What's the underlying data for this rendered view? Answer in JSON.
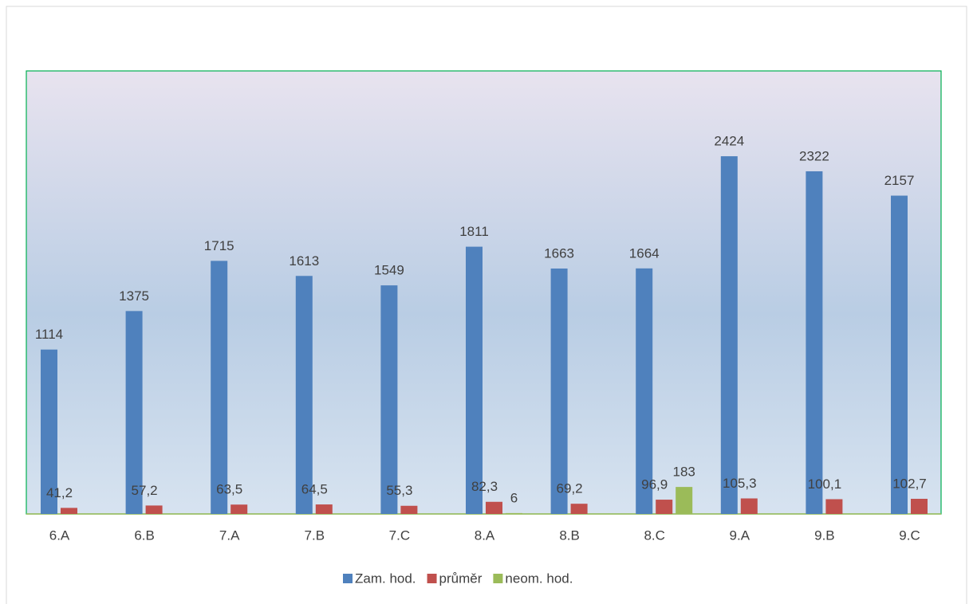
{
  "chart_data": {
    "type": "bar",
    "categories": [
      "6.A",
      "6.B",
      "7.A",
      "7.B",
      "7.C",
      "8.A",
      "8.B",
      "8.C",
      "9.A",
      "9.B",
      "9.C"
    ],
    "series": [
      {
        "name": "Zam. hod.",
        "color": "#4f81bd",
        "values": [
          1114,
          1375,
          1715,
          1613,
          1549,
          1811,
          1663,
          1664,
          2424,
          2322,
          2157
        ]
      },
      {
        "name": "průměr",
        "color": "#c0504d",
        "values": [
          41.2,
          57.2,
          63.5,
          64.5,
          55.3,
          82.3,
          69.2,
          96.9,
          105.3,
          100.1,
          102.7
        ],
        "value_labels": [
          "41,2",
          "57,2",
          "63,5",
          "64,5",
          "55,3",
          "82,3",
          "69,2",
          "96,9",
          "105,3",
          "100,1",
          "102,7"
        ]
      },
      {
        "name": "neom. hod.",
        "color": "#9bbb59",
        "values": [
          null,
          null,
          null,
          null,
          null,
          6,
          null,
          183,
          null,
          null,
          null
        ]
      }
    ],
    "ylim": [
      0,
      3000
    ],
    "legend": "bottom"
  }
}
